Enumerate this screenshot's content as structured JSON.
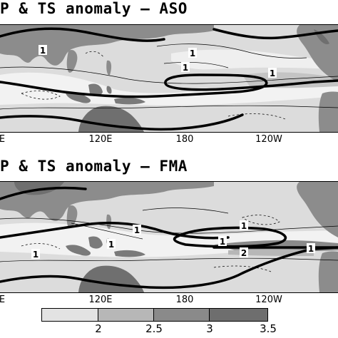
{
  "panels": [
    {
      "title": "P & TS anomaly – ASO",
      "contour_labels": [
        "1",
        "1",
        "1",
        "1"
      ],
      "xticks": [
        "E",
        "120E",
        "180",
        "120W"
      ]
    },
    {
      "title": "P & TS anomaly – FMA",
      "contour_labels": [
        "1",
        "1",
        "1",
        "1",
        "1",
        "1",
        "2"
      ],
      "xticks": [
        "E",
        "120E",
        "180",
        "120W"
      ]
    }
  ],
  "colorbar": {
    "labels": [
      "2",
      "2.5",
      "3",
      "3.5"
    ],
    "colors": [
      "#e3e3e3",
      "#b7b7b7",
      "#8a8a8a",
      "#6e6e6e"
    ]
  },
  "map_colors": {
    "ocean": "#dcdcdc",
    "land": "#8c8c8c",
    "land_dark": "#6f6f6f",
    "light": "#f4f4f4",
    "mid": "#c2c2c2"
  }
}
